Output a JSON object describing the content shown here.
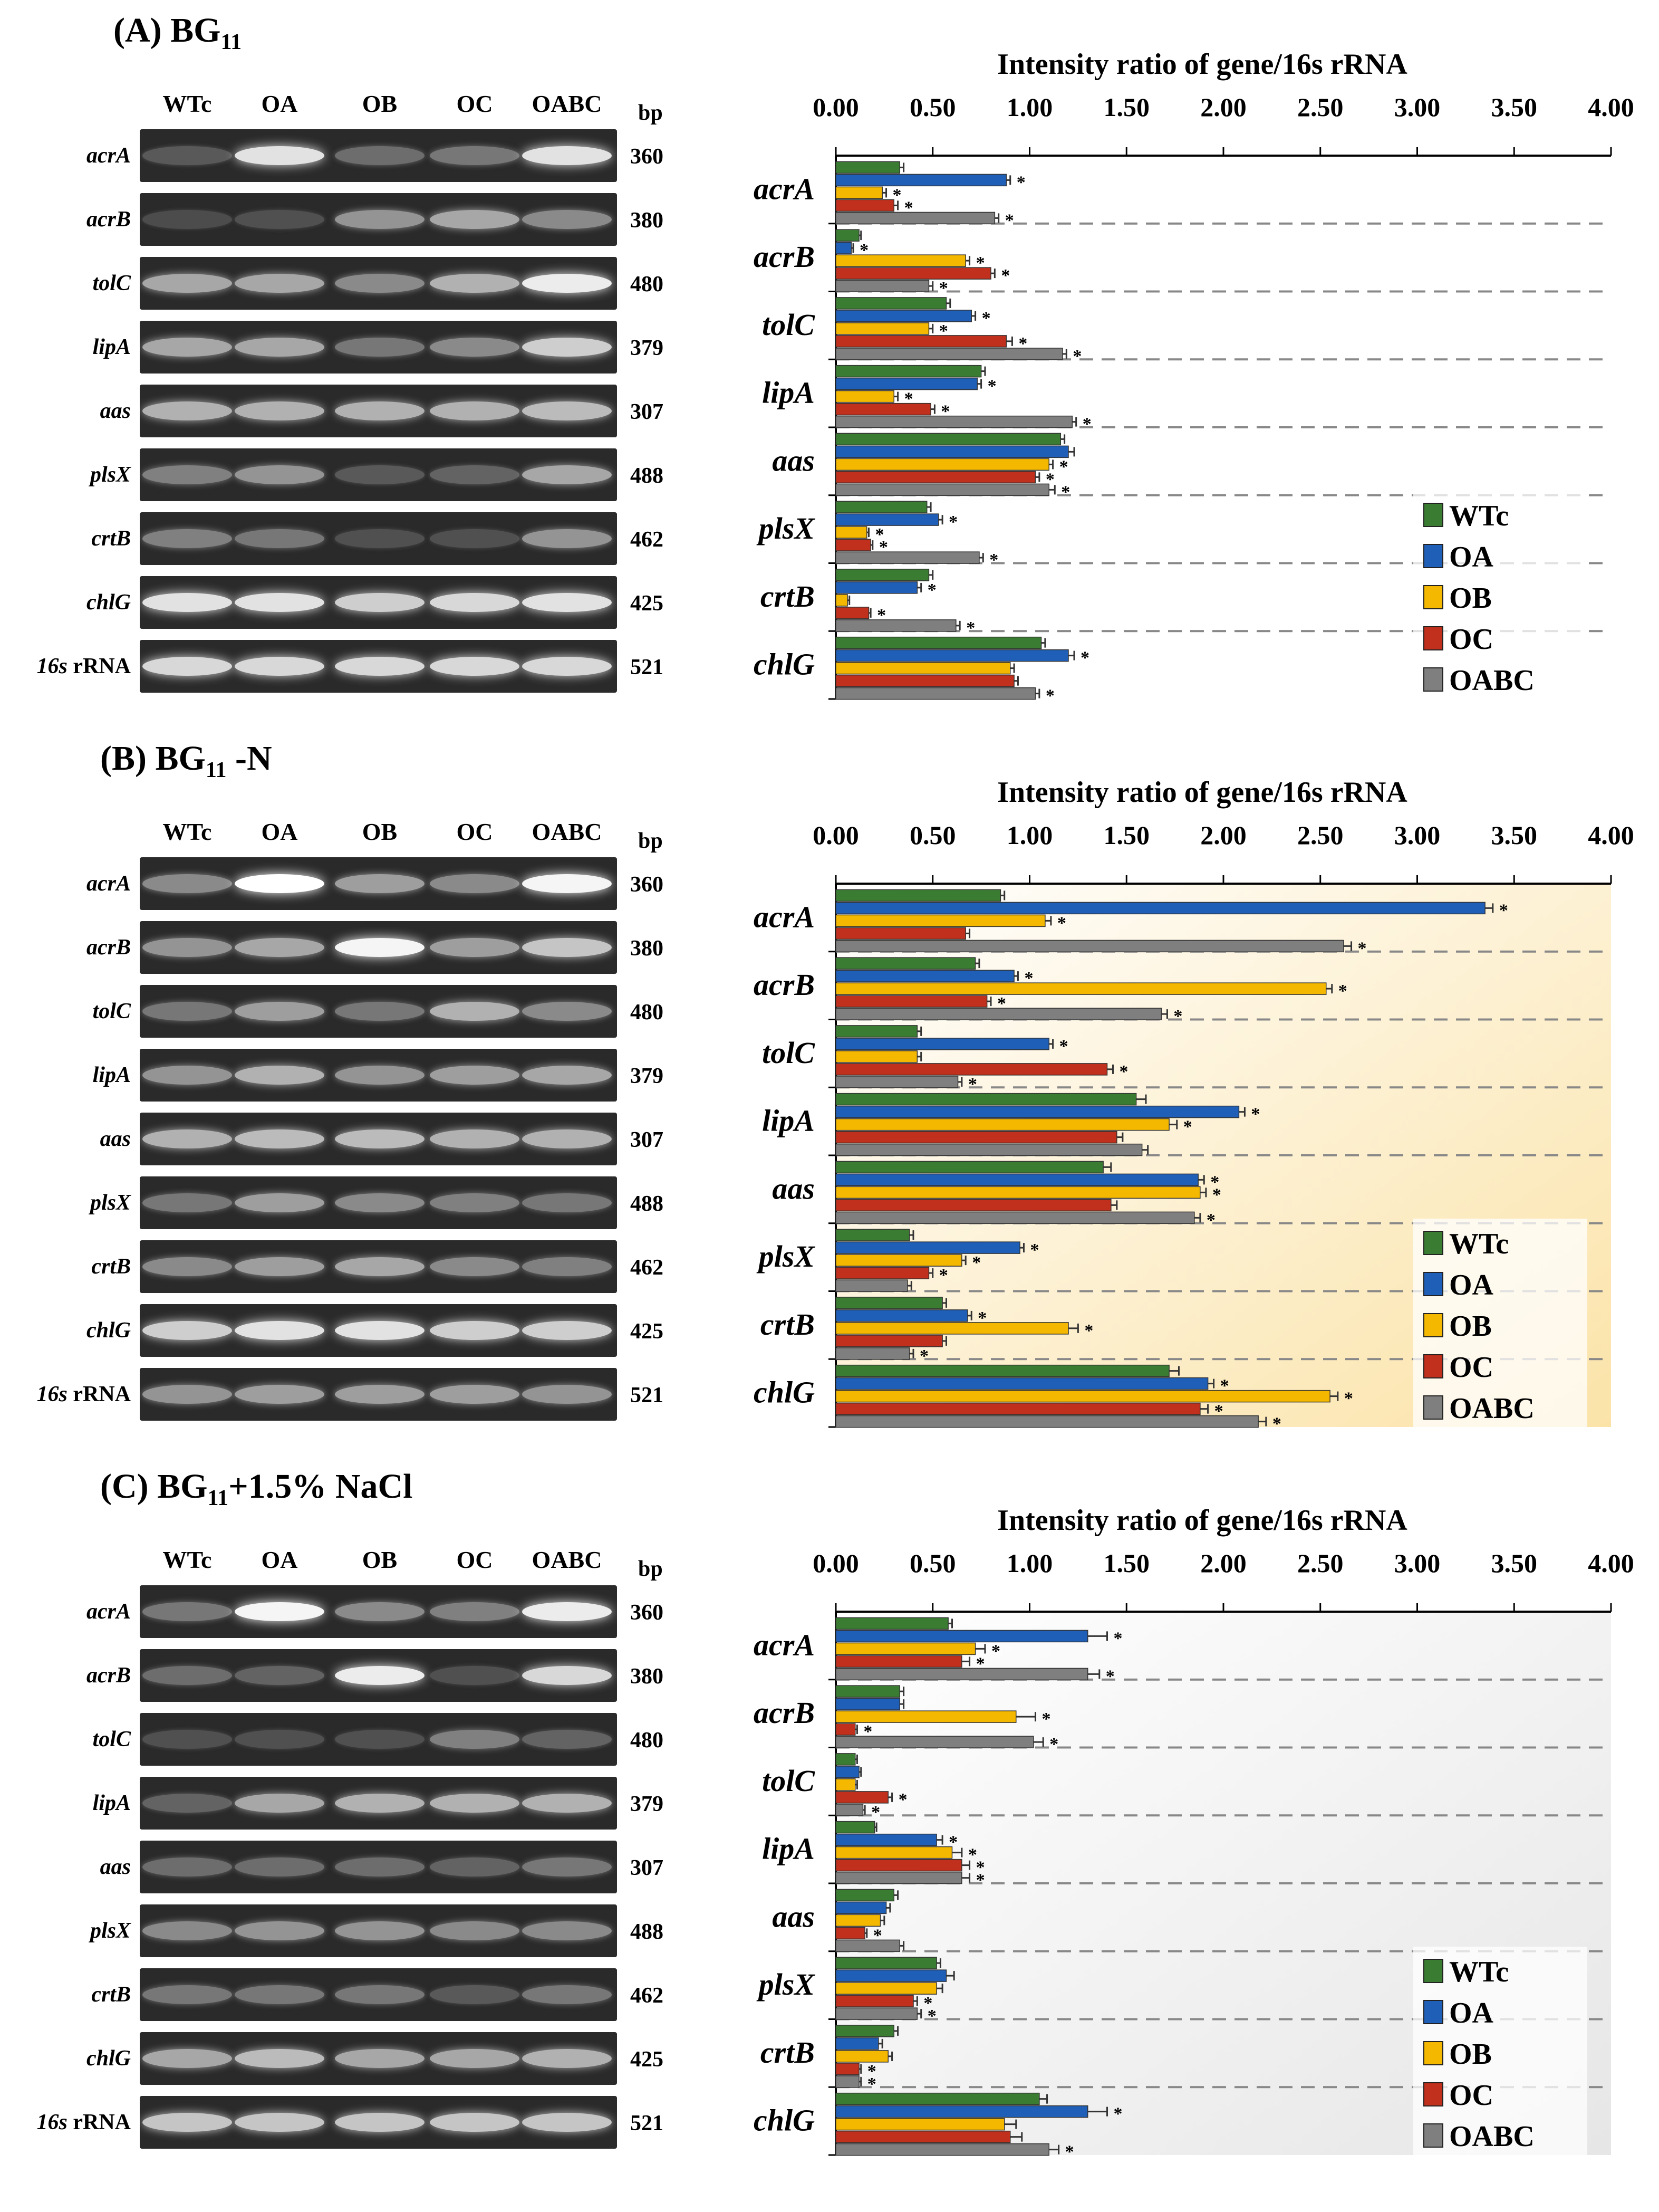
{
  "lanes": [
    "WTc",
    "OA",
    "OB",
    "OC",
    "OABC"
  ],
  "bp_header": "bp",
  "panels": [
    {
      "label": "(A) BG",
      "subscript": "11",
      "suffix": "",
      "chart_title": "Intensity ratio of gene/16s rRNA",
      "gel_rows": [
        {
          "gene": "acrA",
          "bp": "360",
          "band_intensity": [
            0.15,
            0.85,
            0.25,
            0.3,
            0.85
          ]
        },
        {
          "gene": "acrB",
          "bp": "380",
          "band_intensity": [
            0.08,
            0.1,
            0.45,
            0.55,
            0.4
          ]
        },
        {
          "gene": "tolC",
          "bp": "480",
          "band_intensity": [
            0.55,
            0.55,
            0.4,
            0.6,
            0.9
          ]
        },
        {
          "gene": "lipA",
          "bp": "379",
          "band_intensity": [
            0.55,
            0.55,
            0.3,
            0.4,
            0.75
          ]
        },
        {
          "gene": "aas",
          "bp": "307",
          "band_intensity": [
            0.6,
            0.6,
            0.6,
            0.6,
            0.65
          ]
        },
        {
          "gene": "plsX",
          "bp": "488",
          "band_intensity": [
            0.35,
            0.45,
            0.15,
            0.2,
            0.55
          ]
        },
        {
          "gene": "crtB",
          "bp": "462",
          "band_intensity": [
            0.35,
            0.3,
            0.1,
            0.1,
            0.45
          ]
        },
        {
          "gene": "chlG",
          "bp": "425",
          "band_intensity": [
            0.85,
            0.85,
            0.75,
            0.8,
            0.85
          ]
        },
        {
          "gene": "16s",
          "gene_suffix": " rRNA",
          "bp": "521",
          "band_intensity": [
            0.8,
            0.8,
            0.8,
            0.8,
            0.8
          ]
        }
      ]
    },
    {
      "label": "(B) BG",
      "subscript": "11",
      "suffix": " -N",
      "chart_title": "Intensity ratio of gene/16s rRNA",
      "gel_rows": [
        {
          "gene": "acrA",
          "bp": "360",
          "band_intensity": [
            0.4,
            1.0,
            0.5,
            0.4,
            0.95
          ]
        },
        {
          "gene": "acrB",
          "bp": "380",
          "band_intensity": [
            0.45,
            0.55,
            0.95,
            0.5,
            0.7
          ]
        },
        {
          "gene": "tolC",
          "bp": "480",
          "band_intensity": [
            0.3,
            0.5,
            0.3,
            0.6,
            0.4
          ]
        },
        {
          "gene": "lipA",
          "bp": "379",
          "band_intensity": [
            0.45,
            0.6,
            0.45,
            0.5,
            0.55
          ]
        },
        {
          "gene": "aas",
          "bp": "307",
          "band_intensity": [
            0.6,
            0.65,
            0.65,
            0.6,
            0.6
          ]
        },
        {
          "gene": "plsX",
          "bp": "488",
          "band_intensity": [
            0.3,
            0.5,
            0.4,
            0.35,
            0.3
          ]
        },
        {
          "gene": "crtB",
          "bp": "462",
          "band_intensity": [
            0.4,
            0.5,
            0.55,
            0.4,
            0.35
          ]
        },
        {
          "gene": "chlG",
          "bp": "425",
          "band_intensity": [
            0.75,
            0.85,
            0.85,
            0.75,
            0.75
          ]
        },
        {
          "gene": "16s",
          "gene_suffix": " rRNA",
          "bp": "521",
          "band_intensity": [
            0.45,
            0.5,
            0.5,
            0.5,
            0.45
          ]
        }
      ]
    },
    {
      "label": "(C) BG",
      "subscript": "11",
      "suffix": "+1.5% NaCl",
      "chart_title": "Intensity ratio of gene/16s rRNA",
      "gel_rows": [
        {
          "gene": "acrA",
          "bp": "360",
          "band_intensity": [
            0.3,
            0.95,
            0.4,
            0.35,
            0.9
          ]
        },
        {
          "gene": "acrB",
          "bp": "380",
          "band_intensity": [
            0.25,
            0.2,
            0.9,
            0.1,
            0.8
          ]
        },
        {
          "gene": "tolC",
          "bp": "480",
          "band_intensity": [
            0.1,
            0.1,
            0.1,
            0.35,
            0.2
          ]
        },
        {
          "gene": "lipA",
          "bp": "379",
          "band_intensity": [
            0.2,
            0.55,
            0.6,
            0.6,
            0.6
          ]
        },
        {
          "gene": "aas",
          "bp": "307",
          "band_intensity": [
            0.25,
            0.25,
            0.25,
            0.2,
            0.3
          ]
        },
        {
          "gene": "plsX",
          "bp": "488",
          "band_intensity": [
            0.4,
            0.45,
            0.45,
            0.4,
            0.4
          ]
        },
        {
          "gene": "crtB",
          "bp": "462",
          "band_intensity": [
            0.3,
            0.3,
            0.3,
            0.15,
            0.3
          ]
        },
        {
          "gene": "chlG",
          "bp": "425",
          "band_intensity": [
            0.55,
            0.65,
            0.55,
            0.55,
            0.6
          ]
        },
        {
          "gene": "16s",
          "gene_suffix": " rRNA",
          "bp": "521",
          "band_intensity": [
            0.7,
            0.7,
            0.7,
            0.7,
            0.7
          ]
        }
      ]
    }
  ],
  "chart_data": [
    {
      "type": "bar",
      "orientation": "horizontal",
      "title": "Intensity ratio of gene/16s rRNA",
      "xlim": [
        0,
        4
      ],
      "x_ticks": [
        "0.00",
        "0.50",
        "1.00",
        "1.50",
        "2.00",
        "2.50",
        "3.00",
        "3.50",
        "4.00"
      ],
      "categories": [
        "acrA",
        "acrB",
        "tolC",
        "lipA",
        "aas",
        "plsX",
        "crtB",
        "chlG"
      ],
      "legend_placement": "bottom-right",
      "background": "#ffffff",
      "series": [
        {
          "name": "WTc",
          "color": "#3a7d32",
          "values": [
            0.33,
            0.12,
            0.57,
            0.75,
            1.16,
            0.47,
            0.48,
            1.06
          ],
          "errors": [
            0.02,
            0.01,
            0.02,
            0.02,
            0.02,
            0.02,
            0.02,
            0.02
          ],
          "significant": [
            false,
            false,
            false,
            false,
            false,
            false,
            false,
            false
          ]
        },
        {
          "name": "OA",
          "color": "#1f5fb8",
          "values": [
            0.88,
            0.08,
            0.7,
            0.73,
            1.2,
            0.53,
            0.42,
            1.2
          ],
          "errors": [
            0.02,
            0.01,
            0.02,
            0.02,
            0.03,
            0.02,
            0.02,
            0.03
          ],
          "significant": [
            true,
            true,
            true,
            true,
            false,
            true,
            true,
            true
          ]
        },
        {
          "name": "OB",
          "color": "#f5b800",
          "values": [
            0.24,
            0.67,
            0.48,
            0.3,
            1.1,
            0.16,
            0.06,
            0.9
          ],
          "errors": [
            0.02,
            0.02,
            0.02,
            0.02,
            0.02,
            0.01,
            0.01,
            0.02
          ],
          "significant": [
            true,
            true,
            true,
            true,
            true,
            true,
            false,
            false
          ]
        },
        {
          "name": "OC",
          "color": "#c0301c",
          "values": [
            0.3,
            0.8,
            0.88,
            0.49,
            1.03,
            0.18,
            0.17,
            0.92
          ],
          "errors": [
            0.02,
            0.02,
            0.03,
            0.02,
            0.02,
            0.01,
            0.01,
            0.02
          ],
          "significant": [
            true,
            true,
            true,
            true,
            true,
            true,
            true,
            false
          ]
        },
        {
          "name": "OABC",
          "color": "#7f7f7f",
          "values": [
            0.82,
            0.48,
            1.17,
            1.22,
            1.1,
            0.74,
            0.62,
            1.03
          ],
          "errors": [
            0.02,
            0.02,
            0.02,
            0.02,
            0.03,
            0.02,
            0.02,
            0.02
          ],
          "significant": [
            true,
            true,
            true,
            true,
            true,
            true,
            true,
            true
          ]
        }
      ]
    },
    {
      "type": "bar",
      "orientation": "horizontal",
      "title": "Intensity ratio of gene/16s rRNA",
      "xlim": [
        0,
        4
      ],
      "x_ticks": [
        "0.00",
        "0.50",
        "1.00",
        "1.50",
        "2.00",
        "2.50",
        "3.00",
        "3.50",
        "4.00"
      ],
      "categories": [
        "acrA",
        "acrB",
        "tolC",
        "lipA",
        "aas",
        "plsX",
        "crtB",
        "chlG"
      ],
      "legend_placement": "bottom-right",
      "background": "#fbe3a8",
      "series": [
        {
          "name": "WTc",
          "color": "#3a7d32",
          "values": [
            0.85,
            0.72,
            0.42,
            1.55,
            1.38,
            0.38,
            0.55,
            1.72
          ],
          "errors": [
            0.02,
            0.02,
            0.02,
            0.05,
            0.04,
            0.02,
            0.02,
            0.05
          ],
          "significant": [
            false,
            false,
            false,
            false,
            false,
            false,
            false,
            false
          ]
        },
        {
          "name": "OA",
          "color": "#1f5fb8",
          "values": [
            3.35,
            0.92,
            1.1,
            2.08,
            1.87,
            0.95,
            0.68,
            1.92
          ],
          "errors": [
            0.04,
            0.02,
            0.02,
            0.03,
            0.03,
            0.02,
            0.02,
            0.03
          ],
          "significant": [
            true,
            true,
            true,
            true,
            true,
            true,
            true,
            true
          ]
        },
        {
          "name": "OB",
          "color": "#f5b800",
          "values": [
            1.08,
            2.53,
            0.42,
            1.72,
            1.88,
            0.65,
            1.2,
            2.55
          ],
          "errors": [
            0.03,
            0.03,
            0.02,
            0.04,
            0.03,
            0.02,
            0.05,
            0.04
          ],
          "significant": [
            true,
            true,
            false,
            true,
            true,
            true,
            true,
            true
          ]
        },
        {
          "name": "OC",
          "color": "#c0301c",
          "values": [
            0.67,
            0.78,
            1.4,
            1.45,
            1.42,
            0.48,
            0.55,
            1.88
          ],
          "errors": [
            0.02,
            0.02,
            0.03,
            0.03,
            0.03,
            0.02,
            0.02,
            0.04
          ],
          "significant": [
            false,
            true,
            true,
            false,
            false,
            true,
            false,
            true
          ]
        },
        {
          "name": "OABC",
          "color": "#7f7f7f",
          "values": [
            2.62,
            1.68,
            0.63,
            1.58,
            1.85,
            0.37,
            0.38,
            2.18
          ],
          "errors": [
            0.04,
            0.03,
            0.02,
            0.03,
            0.03,
            0.02,
            0.02,
            0.04
          ],
          "significant": [
            true,
            true,
            true,
            false,
            true,
            false,
            true,
            true
          ]
        }
      ]
    },
    {
      "type": "bar",
      "orientation": "horizontal",
      "title": "Intensity ratio of gene/16s rRNA",
      "xlim": [
        0,
        4
      ],
      "x_ticks": [
        "0.00",
        "0.50",
        "1.00",
        "1.50",
        "2.00",
        "2.50",
        "3.00",
        "3.50",
        "4.00"
      ],
      "categories": [
        "acrA",
        "acrB",
        "tolC",
        "lipA",
        "aas",
        "plsX",
        "crtB",
        "chlG"
      ],
      "legend_placement": "bottom-right",
      "background": "#e6e6e6",
      "series": [
        {
          "name": "WTc",
          "color": "#3a7d32",
          "values": [
            0.58,
            0.33,
            0.1,
            0.2,
            0.3,
            0.52,
            0.3,
            1.05
          ],
          "errors": [
            0.02,
            0.02,
            0.01,
            0.01,
            0.02,
            0.02,
            0.02,
            0.04
          ],
          "significant": [
            false,
            false,
            false,
            false,
            false,
            false,
            false,
            false
          ]
        },
        {
          "name": "OA",
          "color": "#1f5fb8",
          "values": [
            1.3,
            0.33,
            0.12,
            0.52,
            0.26,
            0.57,
            0.22,
            1.3
          ],
          "errors": [
            0.1,
            0.02,
            0.01,
            0.03,
            0.02,
            0.04,
            0.02,
            0.1
          ],
          "significant": [
            true,
            false,
            false,
            true,
            false,
            false,
            false,
            true
          ]
        },
        {
          "name": "OB",
          "color": "#f5b800",
          "values": [
            0.72,
            0.93,
            0.1,
            0.6,
            0.23,
            0.52,
            0.27,
            0.87
          ],
          "errors": [
            0.05,
            0.1,
            0.01,
            0.05,
            0.02,
            0.03,
            0.02,
            0.06
          ],
          "significant": [
            true,
            true,
            false,
            true,
            false,
            false,
            false,
            false
          ]
        },
        {
          "name": "OC",
          "color": "#c0301c",
          "values": [
            0.65,
            0.1,
            0.27,
            0.65,
            0.15,
            0.4,
            0.12,
            0.9
          ],
          "errors": [
            0.04,
            0.01,
            0.02,
            0.04,
            0.01,
            0.02,
            0.01,
            0.06
          ],
          "significant": [
            true,
            true,
            true,
            true,
            true,
            true,
            true,
            false
          ]
        },
        {
          "name": "OABC",
          "color": "#7f7f7f",
          "values": [
            1.3,
            1.02,
            0.14,
            0.65,
            0.33,
            0.42,
            0.12,
            1.1
          ],
          "errors": [
            0.06,
            0.05,
            0.01,
            0.04,
            0.02,
            0.02,
            0.01,
            0.05
          ],
          "significant": [
            true,
            true,
            true,
            true,
            false,
            true,
            true,
            true
          ]
        }
      ]
    }
  ]
}
